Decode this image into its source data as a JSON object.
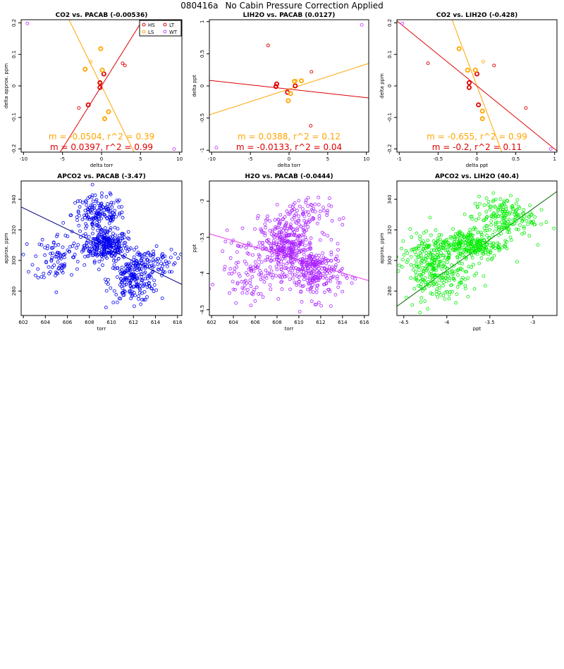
{
  "page": {
    "title_id": "080416a",
    "title_text": "No Cabin Pressure Correction Applied"
  },
  "chart_data": [
    {
      "type": "scatter",
      "title": "CO2 vs. PACAB (-0.00536)",
      "xlabel": "delta torr",
      "ylabel": "delta approx. ppm",
      "xlim": [
        -10.3,
        10.3
      ],
      "ylim": [
        -0.21,
        0.21
      ],
      "xticks": [
        -10,
        -5,
        0,
        5,
        10
      ],
      "yticks": [
        -0.2,
        -0.1,
        0.0,
        0.1,
        0.2
      ],
      "legend": {
        "placement": "top-right",
        "entries": [
          {
            "label": "HS",
            "color": "#dd0000"
          },
          {
            "label": "LT",
            "color": "#dd0000"
          },
          {
            "label": "LS",
            "color": "#ffa500"
          },
          {
            "label": "WT",
            "color": "#cc44ff"
          }
        ]
      },
      "series": [
        {
          "color": "#dd0000",
          "bold": true,
          "points": [
            [
              0.3,
              0.038
            ],
            [
              -0.2,
              0.01
            ],
            [
              -0.2,
              -0.005
            ],
            [
              -1.7,
              -0.06
            ]
          ]
        },
        {
          "color": "#dd0000",
          "bold": false,
          "points": [
            [
              2.7,
              0.072
            ],
            [
              3.0,
              0.065
            ],
            [
              -2.9,
              -0.07
            ]
          ]
        },
        {
          "color": "#ffa500",
          "bold": true,
          "points": [
            [
              -0.1,
              0.118
            ],
            [
              -2.1,
              0.053
            ],
            [
              0.1,
              0.05
            ],
            [
              0.9,
              -0.082
            ],
            [
              0.4,
              -0.104
            ]
          ]
        },
        {
          "color": "#ffa500",
          "bold": false,
          "points": [
            [
              -1.4,
              0.077
            ]
          ]
        },
        {
          "color": "#cc44ff",
          "bold": false,
          "points": [
            [
              -9.5,
              0.198
            ],
            [
              9.3,
              -0.2
            ]
          ]
        }
      ],
      "fits": [
        {
          "color": "#ffa500",
          "slope": -0.0504,
          "intercept": 0.0
        },
        {
          "color": "#dd0000",
          "slope": 0.0397,
          "intercept": 0.0
        }
      ],
      "annotations": [
        {
          "text": "m = -0.0504, r^2 = 0.39",
          "color": "#ffa500"
        },
        {
          "text": "m = 0.0397, r^2 = 0.99",
          "color": "#dd0000"
        }
      ]
    },
    {
      "type": "scatter",
      "title": "LIH2O vs. PACAB (0.0127)",
      "xlabel": "delta torr",
      "ylabel": "delta ppt",
      "xlim": [
        -10.3,
        10.3
      ],
      "ylim": [
        -1.03,
        1.03
      ],
      "xticks": [
        -10,
        -5,
        0,
        5,
        10
      ],
      "yticks": [
        -1.0,
        -0.5,
        0.0,
        0.5,
        1.0
      ],
      "series": [
        {
          "color": "#dd0000",
          "bold": true,
          "points": [
            [
              -1.6,
              0.03
            ],
            [
              -1.7,
              -0.01
            ],
            [
              0.8,
              0.0
            ],
            [
              -0.2,
              -0.1
            ]
          ]
        },
        {
          "color": "#dd0000",
          "bold": false,
          "points": [
            [
              -2.7,
              0.63
            ],
            [
              2.8,
              -0.62
            ],
            [
              2.9,
              0.22
            ]
          ]
        },
        {
          "color": "#ffa500",
          "bold": true,
          "points": [
            [
              1.6,
              0.08
            ],
            [
              0.7,
              0.07
            ],
            [
              0.2,
              -0.12
            ],
            [
              -0.1,
              -0.23
            ]
          ]
        },
        {
          "color": "#ffa500",
          "bold": false,
          "points": [
            [
              0.9,
              0.08
            ]
          ]
        },
        {
          "color": "#cc44ff",
          "bold": false,
          "points": [
            [
              9.4,
              0.95
            ],
            [
              -9.4,
              -0.96
            ]
          ]
        }
      ],
      "fits": [
        {
          "color": "#ffa500",
          "slope": 0.0388,
          "intercept": -0.05
        },
        {
          "color": "#dd0000",
          "slope": -0.0133,
          "intercept": -0.05
        }
      ],
      "annotations": [
        {
          "text": "m = 0.0388, r^2 = 0.12",
          "color": "#ffa500"
        },
        {
          "text": "m = -0.0133, r^2 = 0.04",
          "color": "#dd0000"
        }
      ]
    },
    {
      "type": "scatter",
      "title": "CO2 vs. LIH2O (-0.428)",
      "xlabel": "delta ppt",
      "ylabel": "delta ppm",
      "xlim": [
        -1.03,
        1.03
      ],
      "ylim": [
        -0.21,
        0.21
      ],
      "xticks": [
        -1.0,
        -0.5,
        0.0,
        0.5,
        1.0
      ],
      "yticks": [
        -0.2,
        -0.1,
        0.0,
        0.1,
        0.2
      ],
      "series": [
        {
          "color": "#dd0000",
          "bold": true,
          "points": [
            [
              0.0,
              0.038
            ],
            [
              -0.1,
              0.01
            ],
            [
              -0.1,
              -0.005
            ],
            [
              0.02,
              -0.06
            ]
          ]
        },
        {
          "color": "#dd0000",
          "bold": false,
          "points": [
            [
              -0.63,
              0.072
            ],
            [
              0.22,
              0.065
            ],
            [
              0.63,
              -0.07
            ]
          ]
        },
        {
          "color": "#ffa500",
          "bold": true,
          "points": [
            [
              -0.23,
              0.118
            ],
            [
              -0.12,
              0.05
            ],
            [
              -0.02,
              0.05
            ],
            [
              0.07,
              -0.08
            ],
            [
              0.07,
              -0.104
            ]
          ]
        },
        {
          "color": "#ffa500",
          "bold": false,
          "points": [
            [
              0.08,
              0.077
            ]
          ]
        },
        {
          "color": "#cc44ff",
          "bold": false,
          "points": [
            [
              -0.96,
              0.198
            ],
            [
              0.95,
              -0.2
            ]
          ]
        }
      ],
      "fits": [
        {
          "color": "#ffa500",
          "slope": -0.655,
          "intercept": 0.0
        },
        {
          "color": "#dd0000",
          "slope": -0.2,
          "intercept": 0.0
        }
      ],
      "annotations": [
        {
          "text": "m = -0.655, r^2 = 0.99",
          "color": "#ffa500"
        },
        {
          "text": "m = -0.2, r^2 = 0.11",
          "color": "#dd0000"
        }
      ]
    },
    {
      "type": "scatter",
      "title": "APCO2 vs. PACAB (-3.47)",
      "xlabel": "torr",
      "ylabel": "approx. ppm",
      "xlim": [
        601.8,
        616.4
      ],
      "ylim": [
        264,
        352
      ],
      "xticks": [
        602,
        604,
        606,
        608,
        610,
        612,
        614,
        616
      ],
      "yticks": [
        280,
        300,
        320,
        340
      ],
      "color": "#0000ee",
      "clusters": [
        {
          "n": 260,
          "cx": 609.5,
          "sx": 1.0,
          "cy": 310,
          "sy": 5
        },
        {
          "n": 170,
          "cx": 608.8,
          "sx": 1.2,
          "cy": 330,
          "sy": 6
        },
        {
          "n": 200,
          "cx": 612,
          "sx": 1.1,
          "cy": 287,
          "sy": 7
        },
        {
          "n": 90,
          "cx": 605.2,
          "sx": 1.1,
          "cy": 302,
          "sy": 8
        },
        {
          "n": 80,
          "cx": 613.2,
          "sx": 1.4,
          "cy": 300,
          "sy": 4
        }
      ],
      "fit": {
        "color": "#000080",
        "slope": -3.47,
        "x0": 601.8,
        "y0": 335
      }
    },
    {
      "type": "scatter",
      "title": "H2O vs. PACAB (-0.0444)",
      "xlabel": "torr",
      "ylabel": "ppt",
      "xlim": [
        601.8,
        616.4
      ],
      "ylim": [
        -4.58,
        -2.72
      ],
      "xticks": [
        602,
        604,
        606,
        608,
        610,
        612,
        614,
        616
      ],
      "yticks": [
        -4.5,
        -4.0,
        -3.5,
        -3.0
      ],
      "color": "#aa22ff",
      "clusters": [
        {
          "n": 330,
          "cx": 609,
          "sx": 1.2,
          "cy": -3.65,
          "sy": 0.18
        },
        {
          "n": 230,
          "cx": 611.6,
          "sx": 1.2,
          "cy": -4.0,
          "sy": 0.18
        },
        {
          "n": 110,
          "cx": 605.5,
          "sx": 1.4,
          "cy": -3.95,
          "sy": 0.22
        },
        {
          "n": 90,
          "cx": 609.8,
          "sx": 1.5,
          "cy": -3.2,
          "sy": 0.12
        }
      ],
      "fit": {
        "color": "#ee33ee",
        "slope": -0.0444,
        "x0": 601.8,
        "y0": -3.45
      }
    },
    {
      "type": "scatter",
      "title": "APCO2 vs. LIH2O (40.4)",
      "xlabel": "ppt",
      "ylabel": "approx. ppm",
      "xlim": [
        -4.58,
        -2.72
      ],
      "ylim": [
        264,
        352
      ],
      "xticks": [
        -4.5,
        -4.0,
        -3.5,
        -3.0
      ],
      "yticks": [
        280,
        300,
        320,
        340
      ],
      "color": "#00ee00",
      "clusters": [
        {
          "n": 280,
          "cx": -3.75,
          "sx": 0.2,
          "cy": 310,
          "sy": 5
        },
        {
          "n": 180,
          "cx": -4.1,
          "sx": 0.2,
          "cy": 290,
          "sy": 8
        },
        {
          "n": 190,
          "cx": -3.35,
          "sx": 0.18,
          "cy": 328,
          "sy": 7
        },
        {
          "n": 110,
          "cx": -4.25,
          "sx": 0.15,
          "cy": 303,
          "sy": 7
        }
      ],
      "fit": {
        "color": "#006600",
        "slope": 40.4,
        "x0": -4.58,
        "y0": 270
      }
    }
  ]
}
